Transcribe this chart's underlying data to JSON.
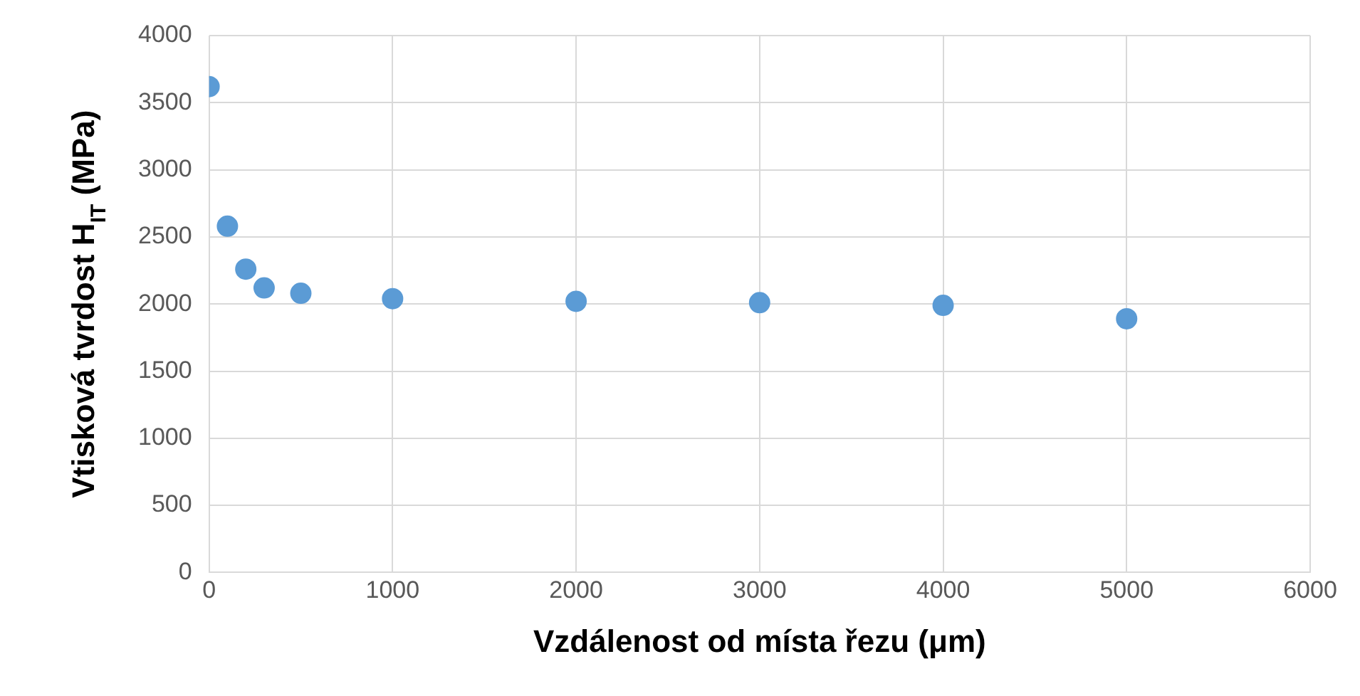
{
  "chart_data": {
    "type": "scatter",
    "xlabel": "Vzdálenost od místa řezu (μm)",
    "ylabel": "Vtisková tvrdost H$_{IT}$ (MPa)",
    "x": [
      0,
      100,
      200,
      300,
      500,
      1000,
      2000,
      3000,
      4000,
      5000
    ],
    "series": [
      {
        "color": "#5b9bd5",
        "values": [
          3620,
          2580,
          2260,
          2120,
          2080,
          2040,
          2020,
          2010,
          1990,
          1890
        ]
      }
    ],
    "xlim": [
      0,
      6000
    ],
    "xticks": [
      0,
      1000,
      2000,
      3000,
      4000,
      5000,
      6000
    ],
    "ylim": [
      0,
      4000
    ],
    "yticks": [
      0,
      500,
      1000,
      1500,
      2000,
      2500,
      3000,
      3500,
      4000
    ],
    "grid": true,
    "legend": false,
    "marker": "circle"
  }
}
